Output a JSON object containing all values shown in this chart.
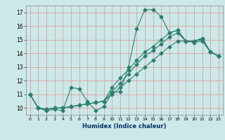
{
  "xlabel": "Humidex (Indice chaleur)",
  "bg_color": "#cce8e8",
  "grid_color": "#e08080",
  "line_color": "#2e7f6e",
  "markersize": 2.5,
  "linewidth": 0.8,
  "xlim": [
    -0.5,
    23.5
  ],
  "ylim": [
    9.5,
    17.5
  ],
  "xticks": [
    0,
    1,
    2,
    3,
    4,
    5,
    6,
    7,
    8,
    9,
    10,
    11,
    12,
    13,
    14,
    15,
    16,
    17,
    18,
    19,
    20,
    21,
    22,
    23
  ],
  "yticks": [
    10,
    11,
    12,
    13,
    14,
    15,
    16,
    17
  ],
  "series": [
    [
      11.0,
      10.0,
      9.8,
      9.9,
      9.8,
      11.5,
      11.4,
      10.5,
      9.8,
      10.1,
      11.1,
      11.2,
      13.0,
      15.8,
      17.2,
      17.2,
      16.7,
      15.5,
      15.7,
      14.9,
      14.9,
      15.1,
      14.1,
      13.8
    ],
    [
      11.0,
      10.0,
      9.9,
      10.0,
      10.0,
      10.1,
      10.2,
      10.3,
      10.4,
      10.5,
      11.0,
      11.5,
      12.0,
      12.5,
      13.0,
      13.5,
      14.0,
      14.5,
      14.9,
      14.9,
      14.8,
      14.9,
      14.1,
      13.8
    ],
    [
      11.0,
      10.0,
      9.9,
      10.0,
      10.0,
      10.1,
      10.2,
      10.3,
      10.4,
      10.5,
      11.2,
      11.8,
      12.5,
      13.2,
      13.8,
      14.2,
      14.7,
      15.2,
      15.5,
      14.9,
      14.9,
      15.0,
      14.1,
      13.8
    ],
    [
      11.0,
      10.0,
      9.9,
      10.0,
      10.0,
      10.1,
      10.2,
      10.3,
      10.4,
      10.5,
      11.5,
      12.2,
      12.8,
      13.5,
      14.1,
      14.5,
      15.0,
      15.5,
      15.7,
      14.9,
      14.9,
      15.1,
      14.1,
      13.8
    ]
  ]
}
